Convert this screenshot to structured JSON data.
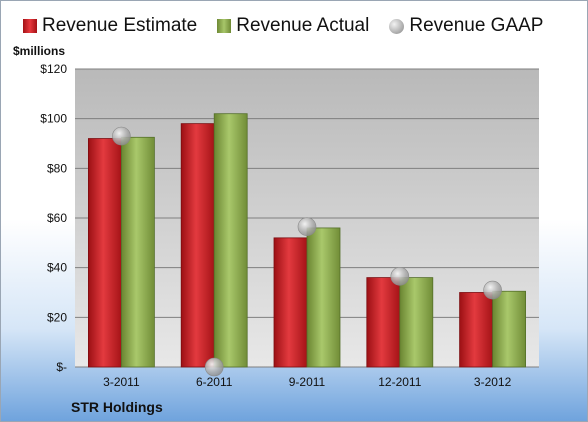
{
  "legend": {
    "estimate": "Revenue Estimate",
    "actual": "Revenue Actual",
    "gaap": "Revenue GAAP"
  },
  "y_unit": "$millions",
  "company": "STR Holdings",
  "colors": {
    "estimate": "#c8171c",
    "actual": "#8fae4f",
    "gaap": "#b8b8b8",
    "plot_background_top": "#bdbdbd",
    "plot_background_bottom": "#e6e6e6",
    "gridline": "#7f7f7f"
  },
  "chart_data": {
    "type": "bar",
    "categories": [
      "3-2011",
      "6-2011",
      "9-2011",
      "12-2011",
      "3-2012"
    ],
    "series": [
      {
        "name": "Revenue Estimate",
        "type": "bar",
        "values": [
          92,
          98,
          52,
          36,
          30
        ]
      },
      {
        "name": "Revenue Actual",
        "type": "bar",
        "values": [
          92.5,
          102,
          56,
          36,
          30.5
        ]
      },
      {
        "name": "Revenue GAAP",
        "type": "scatter",
        "values": [
          93,
          0,
          56.5,
          36.5,
          31
        ]
      }
    ],
    "yticks": [
      "$-",
      "$20",
      "$40",
      "$60",
      "$80",
      "$100",
      "$120"
    ],
    "ylim": [
      0,
      120
    ],
    "grid": true,
    "legend_position": "top"
  }
}
